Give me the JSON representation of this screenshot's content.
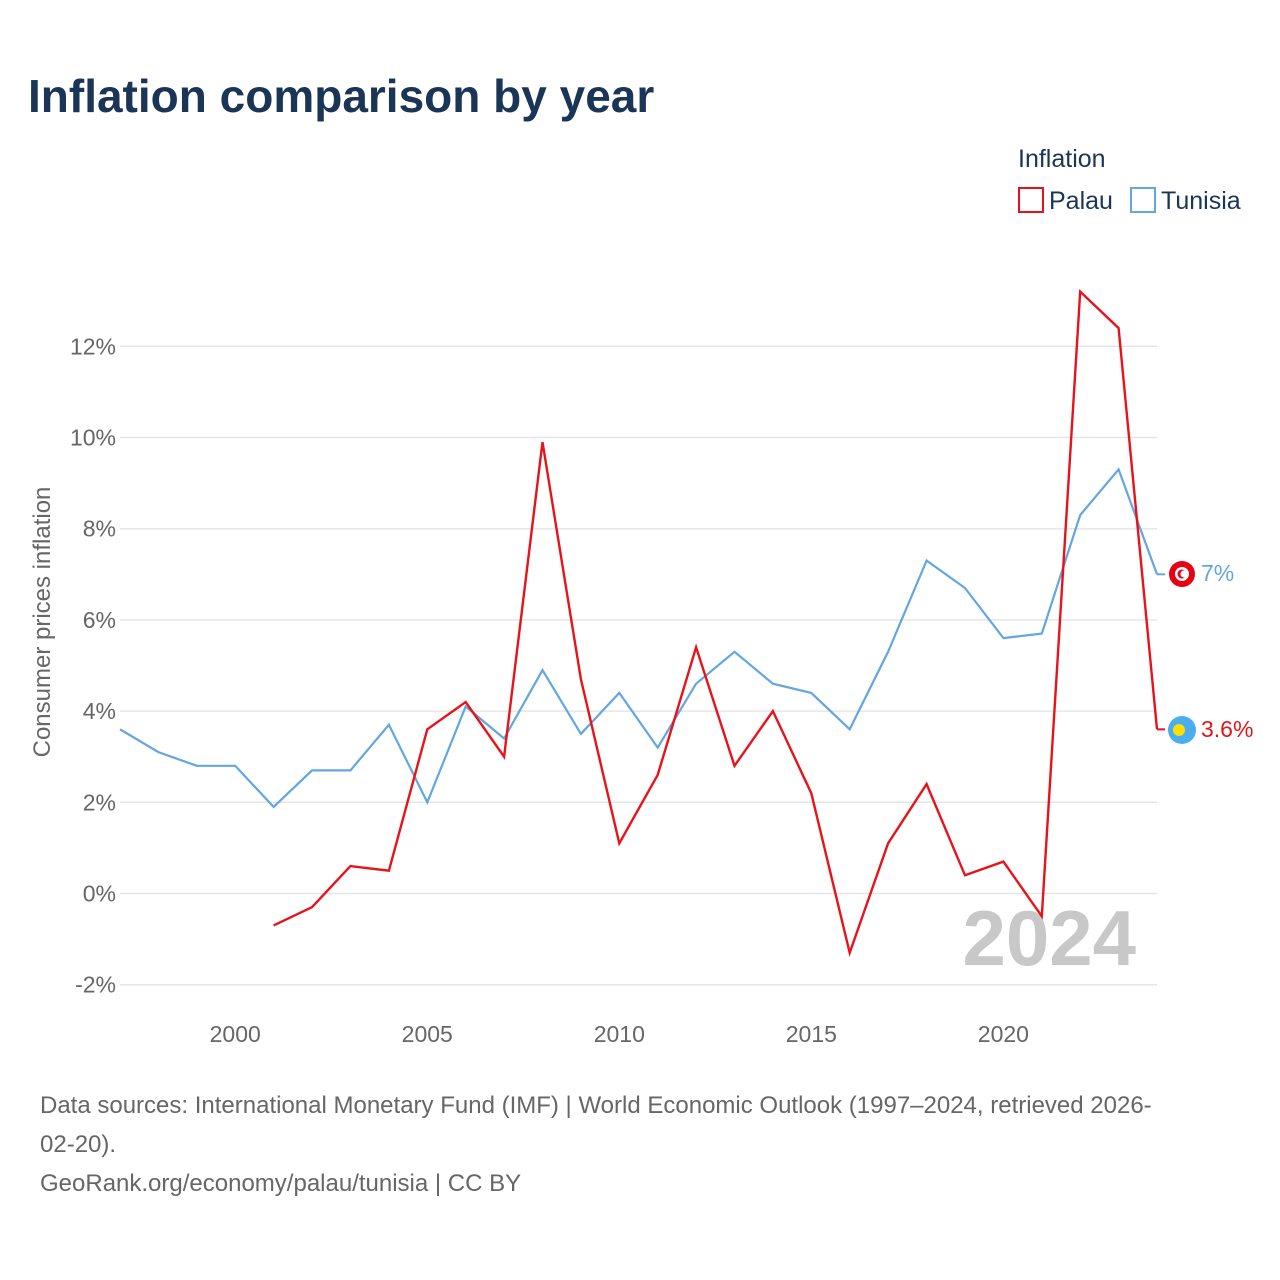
{
  "title": "Inflation comparison by year",
  "legend": {
    "title": "Inflation",
    "entries": [
      {
        "name": "Palau",
        "color": "#e8131a"
      },
      {
        "name": "Tunisia",
        "color": "#63a6e0"
      }
    ]
  },
  "watermark_year": "2024",
  "end_labels": {
    "tunisia": "7%",
    "palau": "3.6%"
  },
  "flags": {
    "tunisia": {
      "icon": "tunisia-flag-icon",
      "color": "#e70013"
    },
    "palau": {
      "icon": "palau-flag-icon",
      "color": "#4aaded",
      "disc": "#ffde00"
    }
  },
  "source": {
    "line1": "Data sources: International Monetary Fund (IMF) | World Economic Outlook (1997–2024, retrieved 2026-",
    "line2": "02-20).",
    "line3": "GeoRank.org/economy/palau/tunisia | CC BY"
  },
  "chart_data": {
    "type": "line",
    "title": "Inflation comparison by year",
    "xlabel": "",
    "ylabel": "Consumer prices inflation",
    "xlim": [
      1997,
      2024
    ],
    "ylim": [
      -2.5,
      13.5
    ],
    "x_ticks": [
      2000,
      2005,
      2010,
      2015,
      2020
    ],
    "y_ticks": [
      -2,
      0,
      2,
      4,
      6,
      8,
      10,
      12
    ],
    "y_tick_labels": [
      "-2%",
      "0%",
      "2%",
      "4%",
      "6%",
      "8%",
      "10%",
      "12%"
    ],
    "grid": true,
    "legend_position": "top-right",
    "series": [
      {
        "name": "Palau",
        "color": "#e8131a",
        "x": [
          2001,
          2002,
          2003,
          2004,
          2005,
          2006,
          2007,
          2008,
          2009,
          2010,
          2011,
          2012,
          2013,
          2014,
          2015,
          2016,
          2017,
          2018,
          2019,
          2020,
          2021,
          2022,
          2023,
          2024
        ],
        "values": [
          -0.7,
          -0.3,
          0.6,
          0.5,
          3.6,
          4.2,
          3.0,
          9.9,
          4.7,
          1.1,
          2.6,
          5.4,
          2.8,
          4.0,
          2.2,
          -1.3,
          1.1,
          2.4,
          0.4,
          0.7,
          -0.5,
          13.2,
          12.4,
          3.6
        ]
      },
      {
        "name": "Tunisia",
        "color": "#63a6e0",
        "x": [
          1997,
          1998,
          1999,
          2000,
          2001,
          2002,
          2003,
          2004,
          2005,
          2006,
          2007,
          2008,
          2009,
          2010,
          2011,
          2012,
          2013,
          2014,
          2015,
          2016,
          2017,
          2018,
          2019,
          2020,
          2021,
          2022,
          2023,
          2024
        ],
        "values": [
          3.6,
          3.1,
          2.8,
          2.8,
          1.9,
          2.7,
          2.7,
          3.7,
          2.0,
          4.1,
          3.4,
          4.9,
          3.5,
          4.4,
          3.2,
          4.6,
          5.3,
          4.6,
          4.4,
          3.6,
          5.3,
          7.3,
          6.7,
          5.6,
          5.7,
          8.3,
          9.3,
          7.0
        ]
      }
    ]
  }
}
